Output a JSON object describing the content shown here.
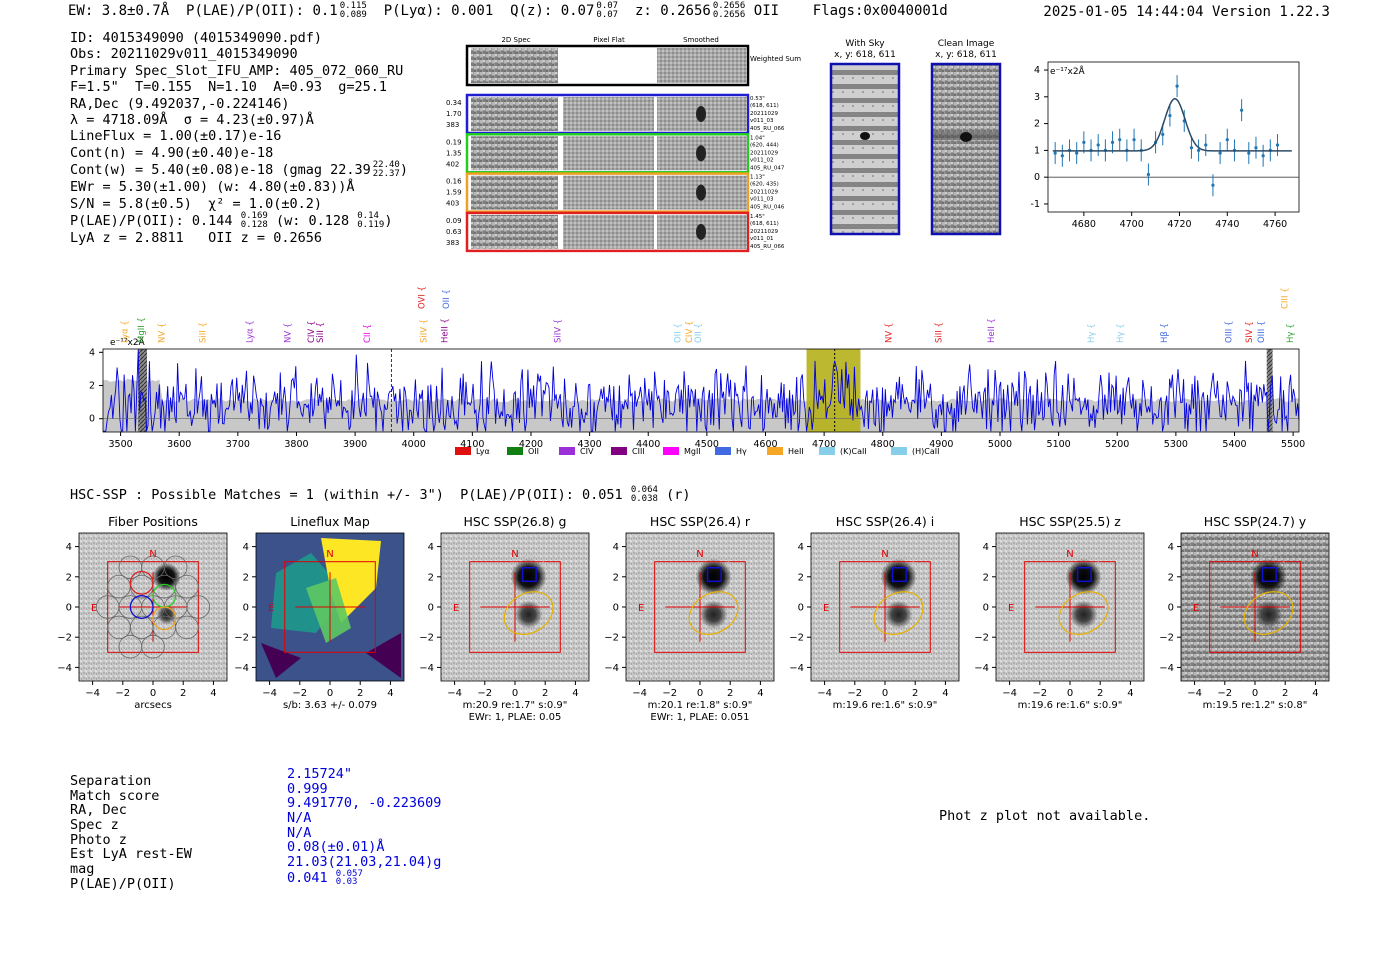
{
  "header": {
    "ew": "EW: 3.8±0.7Å",
    "plae_lbl": "P(LAE)/P(OII): 0.1",
    "plae_hi": "0.115",
    "plae_lo": "0.089",
    "plya": "P(Lyα): 0.001",
    "qz": "Q(z): 0.07",
    "qz_hi": "0.07",
    "qz_lo": "0.07",
    "z": "z: 0.2656",
    "z_hi": "0.2656",
    "z_lo": "0.2656",
    "z_line": "OII",
    "flags": "Flags:0x0040001d",
    "timestamp": "2025-01-05 14:44:04",
    "version": "Version 1.22.3"
  },
  "info": {
    "id": "ID: 4015349090 (4015349090.pdf)",
    "obs": "Obs: 20211029v011_4015349090",
    "slot": "Primary Spec_Slot_IFU_AMP: 405_072_060_RU",
    "params": "F=1.5\"  T=0.155  N=1.10  A=0.93  g=25.1",
    "radec": "RA,Dec (9.492037,-0.224146)",
    "lambda": "λ = 4718.09Å  σ = 4.23(±0.97)Å",
    "lineflux": "LineFlux = 1.00(±0.17)e-16",
    "contn": "Cont(n) = 4.90(±0.40)e-18",
    "contw": "Cont(w) = 5.40(±0.08)e-18 (gmag 22.39",
    "contw_hi": "22.40",
    "contw_lo": "22.37",
    "ewr": "EWr = 5.30(±1.00) (w: 4.80(±0.83))Å",
    "sn": "S/N = 5.8(±0.5)  χ² = 1.0(±0.2)",
    "plae": "P(LAE)/P(OII): 0.144",
    "plae_hi": "0.169",
    "plae_lo": "0.128",
    "plae_w": "(w: 0.128",
    "plae_w_hi": "0.14",
    "plae_w_lo": "0.119",
    "lyaz": "LyA z = 2.8811   OII z = 0.2656"
  },
  "cutouts": {
    "col_labels": [
      "2D Spec",
      "Pixel Flat",
      "Smoothed"
    ],
    "weighted_label": "Weighted Sum",
    "rows": [
      {
        "v1": "0.34",
        "v2": "1.70",
        "v3": "383",
        "sep": "0.53\"",
        "xy": "(618, 611)",
        "date": "20211029",
        "shot": "v011_03",
        "amp": "405_RU_066",
        "color": "#1f1fd0"
      },
      {
        "v1": "0.19",
        "v2": "1.35",
        "v3": "402",
        "sep": "1.04\"",
        "xy": "(620, 444)",
        "date": "20211029",
        "shot": "v011_02",
        "amp": "405_RU_047",
        "color": "#22cc22"
      },
      {
        "v1": "0.16",
        "v2": "1.59",
        "v3": "403",
        "sep": "1.13\"",
        "xy": "(620, 435)",
        "date": "20211029",
        "shot": "v011_03",
        "amp": "405_RU_046",
        "color": "#f0a020"
      },
      {
        "v1": "0.09",
        "v2": "0.63",
        "v3": "383",
        "sep": "1.45\"",
        "xy": "(618, 611)",
        "date": "20211029",
        "shot": "v011_01",
        "amp": "405_RU_066",
        "color": "#e02020"
      }
    ],
    "with_sky": "With Sky",
    "with_sky_xy": "x, y: 618, 611",
    "clean": "Clean Image",
    "clean_xy": "x, y: 618, 611"
  },
  "zoom_plot": {
    "ylabel": "e⁻¹⁷x2Å",
    "xticks": [
      4680,
      4700,
      4720,
      4740,
      4760
    ],
    "yticks": [
      -1,
      0,
      1,
      2,
      3,
      4
    ],
    "xlim": [
      4665,
      4770
    ],
    "ylim": [
      -1.3,
      4.3
    ],
    "points": [
      [
        4668,
        0.9
      ],
      [
        4671,
        0.8
      ],
      [
        4674,
        1.0
      ],
      [
        4677,
        0.9
      ],
      [
        4680,
        1.3
      ],
      [
        4683,
        1.0
      ],
      [
        4686,
        1.2
      ],
      [
        4689,
        1.0
      ],
      [
        4692,
        1.3
      ],
      [
        4695,
        1.4
      ],
      [
        4698,
        1.0
      ],
      [
        4701,
        1.4
      ],
      [
        4704,
        1.0
      ],
      [
        4707,
        0.1
      ],
      [
        4710,
        1.3
      ],
      [
        4713,
        1.6
      ],
      [
        4716,
        2.3
      ],
      [
        4719,
        3.4
      ],
      [
        4722,
        2.1
      ],
      [
        4725,
        1.1
      ],
      [
        4728,
        1.0
      ],
      [
        4731,
        1.2
      ],
      [
        4734,
        -0.3
      ],
      [
        4737,
        0.9
      ],
      [
        4740,
        1.4
      ],
      [
        4743,
        1.0
      ],
      [
        4746,
        2.5
      ],
      [
        4749,
        0.9
      ],
      [
        4752,
        1.1
      ],
      [
        4755,
        0.8
      ],
      [
        4758,
        1.0
      ],
      [
        4761,
        1.2
      ]
    ],
    "fit_center": 4718.09,
    "fit_sigma": 4.23,
    "fit_cont": 0.98,
    "fit_amp": 1.95
  },
  "chart_data": {
    "type": "line",
    "title": "",
    "ylabel": "e⁻¹⁷x2Å",
    "xlim": [
      3470,
      5510
    ],
    "ylim": [
      -0.8,
      4.2
    ],
    "xticks": [
      3500,
      3600,
      3700,
      3800,
      3900,
      4000,
      4100,
      4200,
      4300,
      4400,
      4500,
      4600,
      4700,
      4800,
      4900,
      5000,
      5100,
      5200,
      5300,
      5400,
      5500
    ],
    "yticks": [
      0,
      2,
      4
    ],
    "highlight_range": [
      4670,
      4762
    ],
    "line_marker": 4718,
    "dashed_marker": 3962,
    "masked_ranges": [
      [
        3530,
        3545
      ],
      [
        5455,
        5465
      ]
    ],
    "emission_lines": [
      {
        "name": "Lyα",
        "x": 3512,
        "color": "#f5a623"
      },
      {
        "name": "MgII",
        "x": 3540,
        "color": "#2ca02c"
      },
      {
        "name": "NV",
        "x": 3575,
        "color": "#f5a623"
      },
      {
        "name": "SiII",
        "x": 3645,
        "color": "#f5a623"
      },
      {
        "name": "Lyα",
        "x": 3725,
        "color": "#9b30d9"
      },
      {
        "name": "NV",
        "x": 3790,
        "color": "#9b30d9"
      },
      {
        "name": "CIV",
        "x": 3830,
        "color": "#8b008b"
      },
      {
        "name": "SiII",
        "x": 3845,
        "color": "#8b008b"
      },
      {
        "name": "CII",
        "x": 3925,
        "color": "#ee00ee"
      },
      {
        "name": "OVI",
        "x": 4018,
        "color": "#e02020"
      },
      {
        "name": "SiIV",
        "x": 4022,
        "color": "#f5a623"
      },
      {
        "name": "HeII",
        "x": 4058,
        "color": "#8b008b"
      },
      {
        "name": "OII",
        "x": 4060,
        "color": "#4169e1"
      },
      {
        "name": "SiIV",
        "x": 4250,
        "color": "#9b30d9"
      },
      {
        "name": "OII",
        "x": 4455,
        "color": "#87ceeb"
      },
      {
        "name": "CIV",
        "x": 4475,
        "color": "#f5a623"
      },
      {
        "name": "OII",
        "x": 4490,
        "color": "#87ceeb"
      },
      {
        "name": "NV",
        "x": 4815,
        "color": "#e02020"
      },
      {
        "name": "SiII",
        "x": 4900,
        "color": "#e02020"
      },
      {
        "name": "HeII",
        "x": 4990,
        "color": "#9b30d9"
      },
      {
        "name": "Hγ",
        "x": 5160,
        "color": "#87ceeb"
      },
      {
        "name": "Hγ",
        "x": 5210,
        "color": "#87ceeb"
      },
      {
        "name": "Hβ",
        "x": 5285,
        "color": "#4169e1"
      },
      {
        "name": "OIII",
        "x": 5395,
        "color": "#4169e1"
      },
      {
        "name": "SIV",
        "x": 5430,
        "color": "#e02020"
      },
      {
        "name": "OIII",
        "x": 5450,
        "color": "#4169e1"
      },
      {
        "name": "CIII",
        "x": 5490,
        "color": "#f5a623"
      },
      {
        "name": "Hγ",
        "x": 5500,
        "color": "#2ca02c"
      }
    ],
    "legend": [
      {
        "name": "Lyα",
        "color": "#e01010"
      },
      {
        "name": "OII",
        "color": "#108010"
      },
      {
        "name": "CIV",
        "color": "#9b30d9"
      },
      {
        "name": "CIII",
        "color": "#800080"
      },
      {
        "name": "MgII",
        "color": "#ff00ff"
      },
      {
        "name": "Hγ",
        "color": "#4169e1"
      },
      {
        "name": "HeII",
        "color": "#f5a623"
      },
      {
        "name": "(K)CaII",
        "color": "#87ceeb"
      },
      {
        "name": "(H)CaII",
        "color": "#87ceeb"
      }
    ]
  },
  "hsc": {
    "title": "HSC-SSP : Possible Matches = 1 (within +/- 3\")  P(LAE)/P(OII): 0.051",
    "plae_hi": "0.064",
    "plae_lo": "0.038",
    "filter": "(r)",
    "axis_ticks": [
      -4,
      -2,
      0,
      2,
      4
    ],
    "north": "N",
    "east": "E",
    "panels": [
      {
        "title": "Fiber Positions",
        "cap1": "arcsecs",
        "cap2": ""
      },
      {
        "title": "Lineflux Map",
        "cap1": "s/b: 3.63 +/- 0.079",
        "cap2": ""
      },
      {
        "title": "HSC SSP(26.8) g",
        "cap1": "m:20.9  re:1.7\"  s:0.9\"",
        "cap2": "EWr: 1, PLAE: 0.05"
      },
      {
        "title": "HSC SSP(26.4) r",
        "cap1": "m:20.1  re:1.8\"  s:0.9\"",
        "cap2": "EWr: 1, PLAE: 0.051"
      },
      {
        "title": "HSC SSP(26.4) i",
        "cap1": "m:19.6  re:1.6\"  s:0.9\"",
        "cap2": ""
      },
      {
        "title": "HSC SSP(25.5) z",
        "cap1": "m:19.6  re:1.6\"  s:0.9\"",
        "cap2": ""
      },
      {
        "title": "HSC SSP(24.7) y",
        "cap1": "m:19.5  re:1.2\"  s:0.8\"",
        "cap2": ""
      }
    ]
  },
  "match": {
    "labels": [
      "Separation",
      "Match score",
      "RA, Dec",
      "Spec z",
      "Photo z",
      "Est LyA rest-EW",
      "mag",
      "P(LAE)/P(OII)"
    ],
    "values": [
      "2.15724\"",
      "0.999",
      "9.491770, -0.223609",
      "N/A",
      "N/A",
      "0.08(±0.01)Å",
      "21.03(21.03,21.04)g",
      "0.041"
    ],
    "plae_hi": "0.057",
    "plae_lo": "0.03"
  },
  "photz_text": "Phot z plot not available.",
  "colors": {
    "spectrum": "#0000dd",
    "highlight": "#b5b01a",
    "errbar": "#1f77b4",
    "fit": "#2b4a66"
  }
}
